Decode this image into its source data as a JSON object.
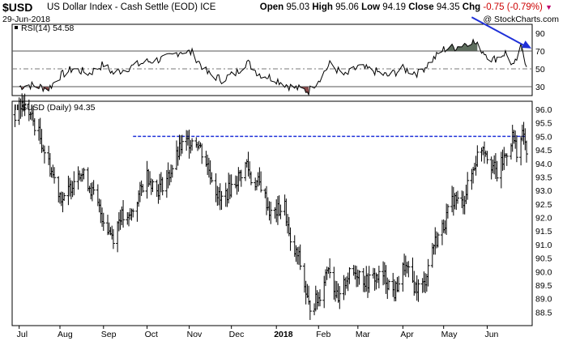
{
  "header": {
    "symbol": "$USD",
    "description": "US Dollar Index - Cash Settle (EOD)",
    "exchange": "ICE",
    "date": "29-Jun-2018",
    "watermark": "@ StockCharts.com",
    "open_label": "Open",
    "open": "95.03",
    "high_label": "High",
    "high": "95.06",
    "low_label": "Low",
    "low": "94.19",
    "close_label": "Close",
    "close": "94.35",
    "chg_label": "Chg",
    "chg": "-0.75 (-0.79%)"
  },
  "chart_data": [
    {
      "type": "line",
      "panel": "indicator",
      "label": "RSI(14) 54.58",
      "ylim": [
        20,
        100
      ],
      "ticks": [
        30,
        50,
        70,
        90
      ],
      "reference_lines": [
        30,
        50,
        70
      ],
      "overbought_fill_color": "#5e6e5e",
      "oversold_fill_color": "#8a4a4a",
      "line_color": "#000000",
      "annotation": {
        "type": "arrow",
        "color": "#1f30d8",
        "from": {
          "date": "2018-05-21",
          "value": 108
        },
        "to": {
          "date": "2018-06-29",
          "value": 73
        }
      },
      "anchors": [
        [
          "2017-07-03",
          30
        ],
        [
          "2017-07-10",
          32
        ],
        [
          "2017-07-24",
          28
        ],
        [
          "2017-08-01",
          42
        ],
        [
          "2017-08-10",
          50
        ],
        [
          "2017-08-22",
          45
        ],
        [
          "2017-09-01",
          55
        ],
        [
          "2017-09-08",
          45
        ],
        [
          "2017-09-20",
          52
        ],
        [
          "2017-10-02",
          58
        ],
        [
          "2017-10-16",
          62
        ],
        [
          "2017-10-26",
          70
        ],
        [
          "2017-11-03",
          68
        ],
        [
          "2017-11-14",
          45
        ],
        [
          "2017-11-24",
          38
        ],
        [
          "2017-12-04",
          45
        ],
        [
          "2017-12-12",
          58
        ],
        [
          "2017-12-20",
          45
        ],
        [
          "2018-01-02",
          38
        ],
        [
          "2018-01-12",
          30
        ],
        [
          "2018-01-25",
          25
        ],
        [
          "2018-02-02",
          40
        ],
        [
          "2018-02-09",
          55
        ],
        [
          "2018-02-20",
          42
        ],
        [
          "2018-03-01",
          52
        ],
        [
          "2018-03-12",
          48
        ],
        [
          "2018-03-22",
          42
        ],
        [
          "2018-04-02",
          50
        ],
        [
          "2018-04-13",
          45
        ],
        [
          "2018-04-23",
          60
        ],
        [
          "2018-05-01",
          72
        ],
        [
          "2018-05-11",
          75
        ],
        [
          "2018-05-21",
          82
        ],
        [
          "2018-05-29",
          70
        ],
        [
          "2018-06-05",
          60
        ],
        [
          "2018-06-14",
          68
        ],
        [
          "2018-06-20",
          52
        ],
        [
          "2018-06-25",
          74
        ],
        [
          "2018-06-29",
          55
        ]
      ]
    },
    {
      "type": "ohlc",
      "panel": "price",
      "label": "$USD (Daily) 94.35",
      "ylim": [
        88.0,
        96.3
      ],
      "ticks": [
        88.5,
        89.0,
        89.5,
        90.0,
        90.5,
        91.0,
        91.5,
        92.0,
        92.5,
        93.0,
        93.5,
        94.0,
        94.5,
        95.0,
        95.5,
        96.0
      ],
      "x_tick_labels": [
        {
          "label": "Jul",
          "date": "2017-07-03"
        },
        {
          "label": "Aug",
          "date": "2017-08-01"
        },
        {
          "label": "Sep",
          "date": "2017-09-01"
        },
        {
          "label": "Oct",
          "date": "2017-10-02"
        },
        {
          "label": "Nov",
          "date": "2017-11-01"
        },
        {
          "label": "Dec",
          "date": "2017-12-01"
        },
        {
          "label": "2018",
          "date": "2018-01-02",
          "bold": true
        },
        {
          "label": "Feb",
          "date": "2018-02-01"
        },
        {
          "label": "Mar",
          "date": "2018-03-01"
        },
        {
          "label": "Apr",
          "date": "2018-04-02"
        },
        {
          "label": "May",
          "date": "2018-05-01"
        },
        {
          "label": "Jun",
          "date": "2018-06-01"
        }
      ],
      "x_range": [
        "2017-06-28",
        "2018-07-03"
      ],
      "resistance_line": {
        "value": 95.0,
        "from": "2017-09-22",
        "to": "2018-06-29",
        "color": "#1f30d8",
        "style": "dashed"
      },
      "anchors": [
        [
          "2017-06-30",
          95.8
        ],
        [
          "2017-07-05",
          96.2
        ],
        [
          "2017-07-10",
          95.9
        ],
        [
          "2017-07-17",
          95.1
        ],
        [
          "2017-07-24",
          94.0
        ],
        [
          "2017-07-31",
          93.0
        ],
        [
          "2017-08-04",
          92.6
        ],
        [
          "2017-08-14",
          93.8
        ],
        [
          "2017-08-21",
          93.3
        ],
        [
          "2017-08-29",
          92.3
        ],
        [
          "2017-09-04",
          91.6
        ],
        [
          "2017-09-08",
          91.3
        ],
        [
          "2017-09-13",
          92.1
        ],
        [
          "2017-09-18",
          91.8
        ],
        [
          "2017-09-26",
          92.8
        ],
        [
          "2017-10-02",
          93.6
        ],
        [
          "2017-10-09",
          93.0
        ],
        [
          "2017-10-17",
          93.5
        ],
        [
          "2017-10-26",
          94.6
        ],
        [
          "2017-11-03",
          94.9
        ],
        [
          "2017-11-07",
          94.8
        ],
        [
          "2017-11-15",
          93.8
        ],
        [
          "2017-11-23",
          92.6
        ],
        [
          "2017-11-29",
          93.0
        ],
        [
          "2017-12-05",
          93.4
        ],
        [
          "2017-12-12",
          94.0
        ],
        [
          "2017-12-15",
          93.4
        ],
        [
          "2017-12-22",
          93.2
        ],
        [
          "2017-12-29",
          92.1
        ],
        [
          "2018-01-08",
          92.4
        ],
        [
          "2018-01-12",
          90.9
        ],
        [
          "2018-01-18",
          90.5
        ],
        [
          "2018-01-25",
          88.7
        ],
        [
          "2018-02-01",
          89.0
        ],
        [
          "2018-02-08",
          90.3
        ],
        [
          "2018-02-15",
          88.8
        ],
        [
          "2018-02-21",
          89.8
        ],
        [
          "2018-03-01",
          90.0
        ],
        [
          "2018-03-07",
          89.6
        ],
        [
          "2018-03-13",
          89.8
        ],
        [
          "2018-03-20",
          89.8
        ],
        [
          "2018-03-27",
          89.2
        ],
        [
          "2018-04-03",
          90.2
        ],
        [
          "2018-04-11",
          89.4
        ],
        [
          "2018-04-17",
          89.5
        ],
        [
          "2018-04-23",
          90.9
        ],
        [
          "2018-04-30",
          91.6
        ],
        [
          "2018-05-08",
          92.7
        ],
        [
          "2018-05-14",
          92.5
        ],
        [
          "2018-05-21",
          93.6
        ],
        [
          "2018-05-25",
          94.3
        ],
        [
          "2018-05-29",
          94.7
        ],
        [
          "2018-06-04",
          94.0
        ],
        [
          "2018-06-08",
          93.6
        ],
        [
          "2018-06-14",
          94.3
        ],
        [
          "2018-06-19",
          95.0
        ],
        [
          "2018-06-22",
          94.5
        ],
        [
          "2018-06-27",
          95.1
        ],
        [
          "2018-06-29",
          94.35
        ]
      ]
    }
  ]
}
